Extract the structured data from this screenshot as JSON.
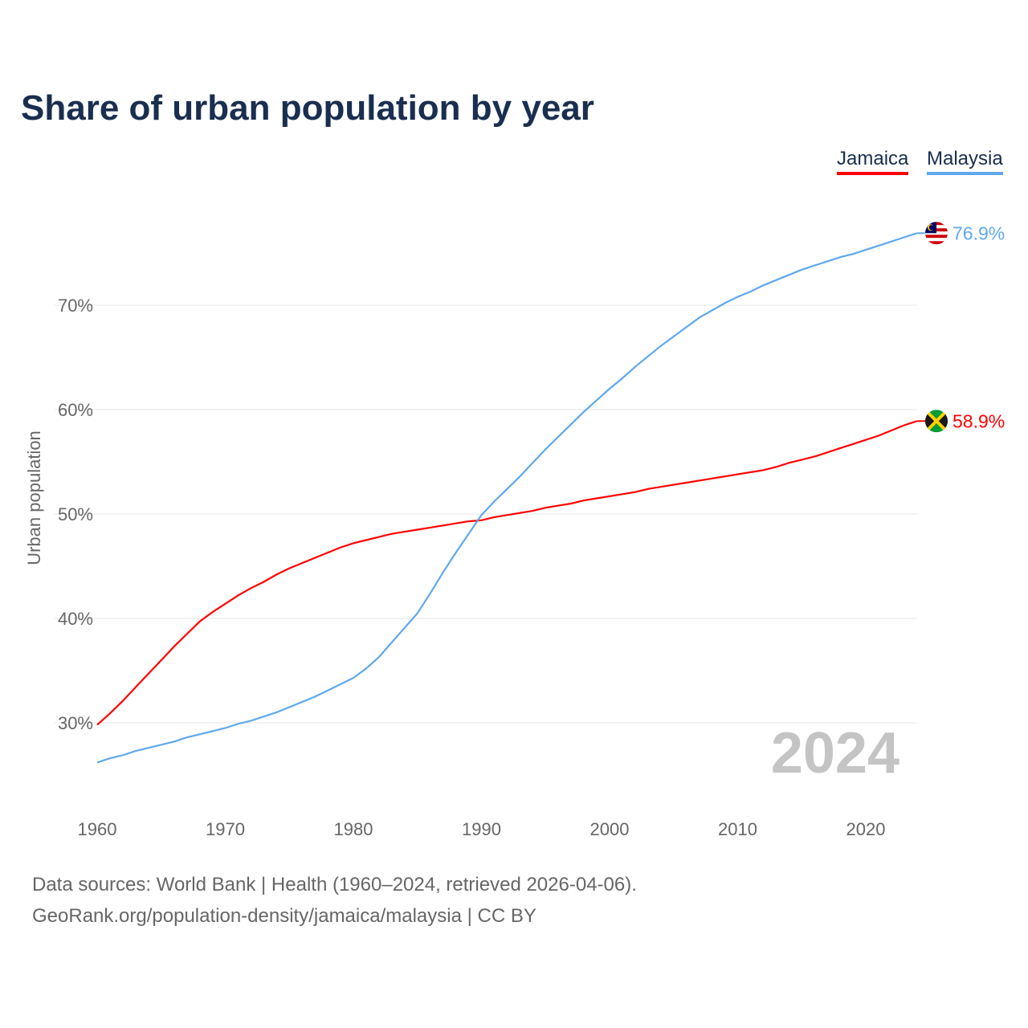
{
  "chart_data": {
    "type": "line",
    "title": "Share of urban population by year",
    "xlabel": "",
    "ylabel": "Urban population",
    "xlim": [
      1960,
      2024
    ],
    "ylim": [
      22,
      80
    ],
    "xticks": [
      "1960",
      "1970",
      "1980",
      "1990",
      "2000",
      "2010",
      "2020"
    ],
    "yticks": [
      "30%",
      "40%",
      "50%",
      "60%",
      "70%"
    ],
    "ytick_values": [
      30,
      40,
      50,
      60,
      70
    ],
    "grid": true,
    "legend_position": "top-right",
    "watermark_year": "2024",
    "x_start": 1960,
    "series": [
      {
        "name": "Jamaica",
        "color": "#ff0000",
        "end_label": "58.9%",
        "values": [
          29.8,
          30.9,
          32.1,
          33.4,
          34.7,
          36.0,
          37.3,
          38.5,
          39.7,
          40.6,
          41.4,
          42.2,
          42.9,
          43.5,
          44.2,
          44.8,
          45.3,
          45.8,
          46.3,
          46.8,
          47.2,
          47.5,
          47.8,
          48.1,
          48.3,
          48.5,
          48.7,
          48.9,
          49.1,
          49.3,
          49.4,
          49.7,
          49.9,
          50.1,
          50.3,
          50.6,
          50.8,
          51.0,
          51.3,
          51.5,
          51.7,
          51.9,
          52.1,
          52.4,
          52.6,
          52.8,
          53.0,
          53.2,
          53.4,
          53.6,
          53.8,
          54.0,
          54.2,
          54.5,
          54.9,
          55.2,
          55.5,
          55.9,
          56.3,
          56.7,
          57.1,
          57.5,
          58.0,
          58.5,
          58.9
        ]
      },
      {
        "name": "Malaysia",
        "color": "#5fa8ec",
        "end_label": "76.9%",
        "values": [
          26.2,
          26.6,
          26.9,
          27.3,
          27.6,
          27.9,
          28.2,
          28.6,
          28.9,
          29.2,
          29.5,
          29.9,
          30.2,
          30.6,
          31.0,
          31.5,
          32.0,
          32.5,
          33.1,
          33.7,
          34.3,
          35.2,
          36.3,
          37.7,
          39.1,
          40.5,
          42.4,
          44.4,
          46.3,
          48.1,
          49.9,
          51.2,
          52.4,
          53.6,
          54.9,
          56.2,
          57.4,
          58.6,
          59.8,
          60.9,
          62.0,
          63.0,
          64.1,
          65.1,
          66.1,
          67.0,
          67.9,
          68.8,
          69.5,
          70.2,
          70.8,
          71.3,
          71.9,
          72.4,
          72.9,
          73.4,
          73.8,
          74.2,
          74.6,
          74.9,
          75.3,
          75.7,
          76.1,
          76.5,
          76.9
        ]
      }
    ]
  },
  "legend": {
    "jamaica": "Jamaica",
    "malaysia": "Malaysia"
  },
  "footer": {
    "line1": "Data sources: World Bank | Health (1960–2024, retrieved 2026-04-06).",
    "line2": "GeoRank.org/population-density/jamaica/malaysia | CC BY"
  }
}
